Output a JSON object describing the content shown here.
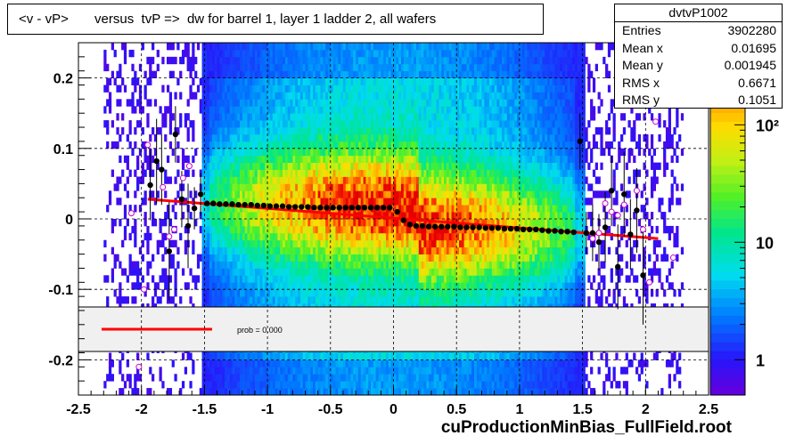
{
  "title": "<v - vP>       versus  tvP =>  dw for barrel 1, layer 1 ladder 2, all wafers",
  "footer": "cuProductionMinBias_FullField.root",
  "stats": {
    "name": "dvtvP1002",
    "rows": [
      {
        "key": "Entries",
        "value": "3902280"
      },
      {
        "key": "Mean x",
        "value": "0.01695"
      },
      {
        "key": "Mean y",
        "value": "0.001945"
      },
      {
        "key": "RMS x",
        "value": "0.6671"
      },
      {
        "key": "RMS y",
        "value": "0.1051"
      }
    ]
  },
  "legend": {
    "label": "prob = 0.000"
  },
  "colors": {
    "fit_line": "#ff0000",
    "profile_points": "#000000",
    "outlier_points": "#cc00cc",
    "band": "#f0f0f0"
  },
  "chart_data": {
    "type": "heatmap",
    "title": "<v - vP>       versus  tvP =>  dw for barrel 1, layer 1 ladder 2, all wafers",
    "xlabel": "",
    "ylabel": "",
    "xlim": [
      -2.5,
      2.5
    ],
    "ylim": [
      -0.25,
      0.25
    ],
    "x_ticks": [
      "-2.5",
      "-2",
      "-1.5",
      "-1",
      "-0.5",
      "0",
      "0.5",
      "1",
      "1.5",
      "2",
      "2.5"
    ],
    "x_tick_values": [
      -2.5,
      -2,
      -1.5,
      -1,
      -0.5,
      0,
      0.5,
      1,
      1.5,
      2,
      2.5
    ],
    "y_ticks": [
      "-0.2",
      "-0.1",
      "0",
      "0.1",
      "0.2"
    ],
    "y_tick_values": [
      -0.2,
      -0.1,
      0,
      0.1,
      0.2
    ],
    "grid": true,
    "log_z": true,
    "z_ticks": [
      "1",
      "10",
      "10²"
    ],
    "z_tick_values": [
      1,
      10,
      100
    ],
    "z_range": [
      0.5,
      500
    ],
    "fit_line": {
      "x": [
        -1.95,
        2.1
      ],
      "y": [
        0.028,
        -0.028
      ]
    },
    "profile": {
      "x": [
        -1.93,
        -1.88,
        -1.84,
        -1.78,
        -1.73,
        -1.68,
        -1.63,
        -1.58,
        -1.53,
        -1.48,
        -1.43,
        -1.38,
        -1.33,
        -1.28,
        -1.23,
        -1.18,
        -1.13,
        -1.08,
        -1.03,
        -0.98,
        -0.93,
        -0.88,
        -0.83,
        -0.78,
        -0.73,
        -0.68,
        -0.63,
        -0.58,
        -0.53,
        -0.48,
        -0.43,
        -0.38,
        -0.33,
        -0.28,
        -0.23,
        -0.18,
        -0.13,
        -0.08,
        -0.03,
        0.03,
        0.08,
        0.13,
        0.18,
        0.23,
        0.28,
        0.33,
        0.38,
        0.43,
        0.48,
        0.53,
        0.58,
        0.63,
        0.68,
        0.73,
        0.78,
        0.83,
        0.88,
        0.93,
        0.98,
        1.03,
        1.08,
        1.13,
        1.18,
        1.23,
        1.28,
        1.33,
        1.38,
        1.43,
        1.48,
        1.53,
        1.58,
        1.63,
        1.68,
        1.73,
        1.78,
        1.83,
        1.88,
        1.93,
        1.98
      ],
      "y": [
        0.048,
        0.082,
        0.07,
        -0.046,
        0.12,
        0.028,
        -0.01,
        0.015,
        0.035,
        0.022,
        0.022,
        0.021,
        0.021,
        0.021,
        0.02,
        0.02,
        0.02,
        0.019,
        0.019,
        0.018,
        0.018,
        0.018,
        0.017,
        0.017,
        0.017,
        0.017,
        0.016,
        0.016,
        0.016,
        0.016,
        0.016,
        0.016,
        0.016,
        0.016,
        0.016,
        0.016,
        0.016,
        0.016,
        0.016,
        0.01,
        -0.002,
        -0.008,
        -0.01,
        -0.01,
        -0.011,
        -0.011,
        -0.011,
        -0.011,
        -0.011,
        -0.012,
        -0.012,
        -0.012,
        -0.012,
        -0.013,
        -0.013,
        -0.013,
        -0.014,
        -0.014,
        -0.014,
        -0.015,
        -0.015,
        -0.015,
        -0.016,
        -0.017,
        -0.017,
        -0.018,
        -0.018,
        -0.019,
        0.11,
        -0.02,
        -0.02,
        -0.033,
        -0.012,
        0.04,
        -0.068,
        0.035,
        -0.022,
        0.012,
        -0.08
      ],
      "yerr": [
        0.05,
        0.06,
        0.05,
        0.07,
        0.04,
        0.04,
        0.06,
        0.03,
        0.03,
        0.003,
        0.003,
        0.002,
        0.002,
        0.002,
        0.002,
        0.002,
        0.002,
        0.002,
        0.002,
        0.002,
        0.002,
        0.002,
        0.002,
        0.002,
        0.002,
        0.002,
        0.002,
        0.002,
        0.002,
        0.002,
        0.002,
        0.002,
        0.002,
        0.002,
        0.002,
        0.002,
        0.002,
        0.002,
        0.002,
        0.002,
        0.002,
        0.002,
        0.002,
        0.002,
        0.002,
        0.002,
        0.002,
        0.002,
        0.002,
        0.002,
        0.002,
        0.002,
        0.002,
        0.002,
        0.002,
        0.002,
        0.002,
        0.002,
        0.002,
        0.002,
        0.002,
        0.002,
        0.002,
        0.002,
        0.002,
        0.002,
        0.002,
        0.003,
        0.04,
        0.03,
        0.04,
        0.04,
        0.05,
        0.05,
        0.06,
        0.06,
        0.05,
        0.06,
        0.07
      ]
    },
    "outliers": {
      "x": [
        -2.08,
        -1.98,
        -1.95,
        -1.83,
        -1.78,
        -1.74,
        -1.67,
        -1.62,
        -2.02,
        1.58,
        1.63,
        1.68,
        1.73,
        1.78,
        1.83,
        1.93,
        1.98,
        2.03,
        2.08,
        2.22
      ],
      "y": [
        0.008,
        -0.1,
        0.105,
        0.045,
        -0.025,
        -0.015,
        0.058,
        0.075,
        -0.21,
        -0.028,
        -0.02,
        0.022,
        0.01,
        0.005,
        0.02,
        0.04,
        -0.015,
        -0.09,
        0.138,
        -0.055
      ]
    }
  }
}
